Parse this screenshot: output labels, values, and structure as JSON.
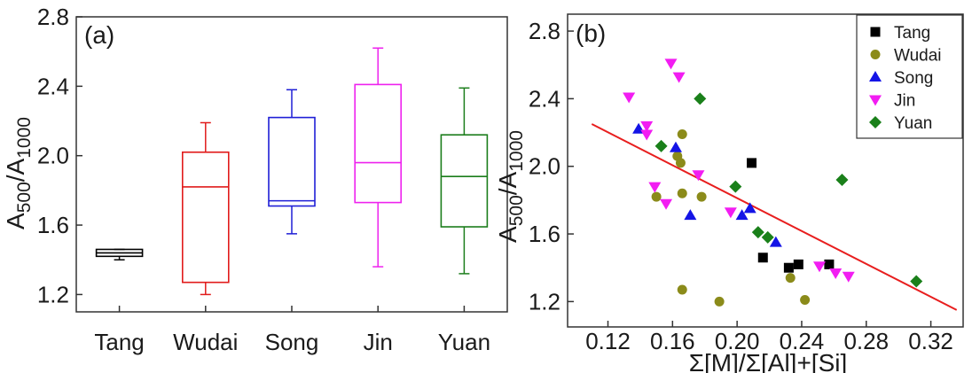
{
  "colors": {
    "Tang": "#000000",
    "Wudai": "#8b8b1a",
    "Song": "#1414e6",
    "Jin": "#f21df2",
    "Yuan": "#1a801a",
    "fit_line": "#e81e1e",
    "box_Tang": "#000000",
    "box_Wudai": "#e11b1b",
    "box_Song": "#1f1fd6",
    "box_Jin": "#ee22ee",
    "box_Yuan": "#1b7d1b"
  },
  "chart_data": [
    {
      "type": "box",
      "panel_label": "(a)",
      "ylabel": {
        "main": "A",
        "sub1": "500",
        "sep": "/A",
        "sub2": "1000"
      },
      "categories": [
        "Tang",
        "Wudai",
        "Song",
        "Jin",
        "Yuan"
      ],
      "ylim": [
        1.1,
        2.8
      ],
      "yticks": [
        1.2,
        1.6,
        2.0,
        2.4,
        2.8
      ],
      "ytick_labels": [
        "1.2",
        "1.6",
        "2.0",
        "2.4",
        "2.8"
      ],
      "boxes": [
        {
          "name": "Tang",
          "whisker_low": 1.4,
          "q1": 1.42,
          "median": 1.44,
          "q3": 1.46,
          "whisker_high": 1.46
        },
        {
          "name": "Wudai",
          "whisker_low": 1.2,
          "q1": 1.27,
          "median": 1.82,
          "q3": 2.02,
          "whisker_high": 2.19
        },
        {
          "name": "Song",
          "whisker_low": 1.55,
          "q1": 1.71,
          "median": 1.74,
          "q3": 2.22,
          "whisker_high": 2.38
        },
        {
          "name": "Jin",
          "whisker_low": 1.36,
          "q1": 1.73,
          "median": 1.96,
          "q3": 2.41,
          "whisker_high": 2.62
        },
        {
          "name": "Yuan",
          "whisker_low": 1.32,
          "q1": 1.59,
          "median": 1.88,
          "q3": 2.12,
          "whisker_high": 2.39
        }
      ],
      "grid": false
    },
    {
      "type": "scatter",
      "panel_label": "(b)",
      "xlabel": "Σ[M]/Σ[Al]+[Si]",
      "ylabel": {
        "main": "A",
        "sub1": "500",
        "sep": "/A",
        "sub2": "1000"
      },
      "xlim": [
        0.095,
        0.34
      ],
      "ylim": [
        1.05,
        2.9
      ],
      "xticks": [
        0.12,
        0.16,
        0.2,
        0.24,
        0.28,
        0.32
      ],
      "xtick_labels": [
        "0.12",
        "0.16",
        "0.20",
        "0.24",
        "0.28",
        "0.32"
      ],
      "yticks": [
        1.2,
        1.6,
        2.0,
        2.4,
        2.8
      ],
      "ytick_labels": [
        "1.2",
        "1.6",
        "2.0",
        "2.4",
        "2.8"
      ],
      "legend_position": "top-right",
      "series": [
        {
          "name": "Tang",
          "marker": "square",
          "points": [
            [
              0.209,
              2.02
            ],
            [
              0.216,
              1.46
            ],
            [
              0.232,
              1.4
            ],
            [
              0.238,
              1.42
            ],
            [
              0.257,
              1.42
            ]
          ]
        },
        {
          "name": "Wudai",
          "marker": "circle",
          "points": [
            [
              0.166,
              2.19
            ],
            [
              0.163,
              2.06
            ],
            [
              0.165,
              2.02
            ],
            [
              0.166,
              1.84
            ],
            [
              0.15,
              1.82
            ],
            [
              0.178,
              1.82
            ],
            [
              0.166,
              1.27
            ],
            [
              0.189,
              1.2
            ],
            [
              0.233,
              1.34
            ],
            [
              0.242,
              1.21
            ]
          ]
        },
        {
          "name": "Song",
          "marker": "triangle-up",
          "points": [
            [
              0.139,
              2.22
            ],
            [
              0.162,
              2.11
            ],
            [
              0.171,
              1.71
            ],
            [
              0.203,
              1.71
            ],
            [
              0.208,
              1.75
            ],
            [
              0.224,
              1.55
            ]
          ]
        },
        {
          "name": "Jin",
          "marker": "triangle-down",
          "points": [
            [
              0.133,
              2.41
            ],
            [
              0.144,
              2.24
            ],
            [
              0.144,
              2.19
            ],
            [
              0.159,
              2.61
            ],
            [
              0.164,
              2.53
            ],
            [
              0.176,
              1.95
            ],
            [
              0.149,
              1.88
            ],
            [
              0.156,
              1.78
            ],
            [
              0.196,
              1.73
            ],
            [
              0.251,
              1.41
            ],
            [
              0.261,
              1.37
            ],
            [
              0.269,
              1.35
            ]
          ]
        },
        {
          "name": "Yuan",
          "marker": "diamond",
          "points": [
            [
              0.177,
              2.4
            ],
            [
              0.153,
              2.12
            ],
            [
              0.199,
              1.88
            ],
            [
              0.213,
              1.61
            ],
            [
              0.219,
              1.58
            ],
            [
              0.265,
              1.92
            ],
            [
              0.311,
              1.32
            ]
          ]
        }
      ],
      "fit_line": {
        "x": [
          0.11,
          0.336
        ],
        "y": [
          2.25,
          1.15
        ]
      },
      "grid": false
    }
  ]
}
